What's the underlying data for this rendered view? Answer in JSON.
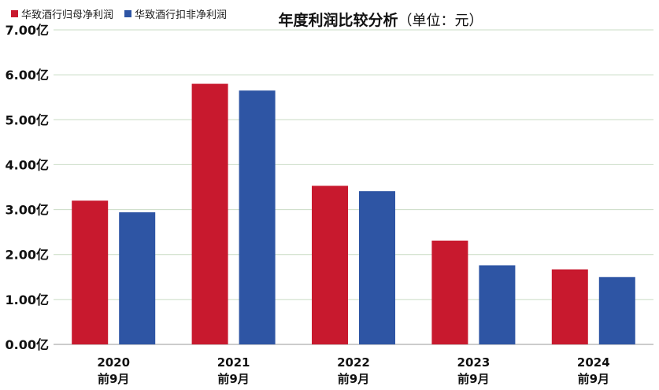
{
  "chart_data": {
    "type": "bar",
    "title": "年度利润比较分析",
    "title_unit": "（单位：元）",
    "categories": [
      [
        "2020",
        "前9月"
      ],
      [
        "2021",
        "前9月"
      ],
      [
        "2022",
        "前9月"
      ],
      [
        "2023",
        "前9月"
      ],
      [
        "2024",
        "前9月"
      ]
    ],
    "series": [
      {
        "name": "华致酒行归母净利润",
        "color": "#c8192e",
        "values": [
          3.2,
          5.8,
          3.53,
          2.31,
          1.67
        ]
      },
      {
        "name": "华致酒行扣非净利润",
        "color": "#2e55a4",
        "values": [
          2.94,
          5.65,
          3.41,
          1.76,
          1.5
        ]
      }
    ],
    "ylim": [
      0,
      7
    ],
    "yticks": [
      "0.00亿",
      "1.00亿",
      "2.00亿",
      "3.00亿",
      "4.00亿",
      "5.00亿",
      "6.00亿",
      "7.00亿"
    ],
    "grid": true,
    "legend_position": "top-left"
  }
}
